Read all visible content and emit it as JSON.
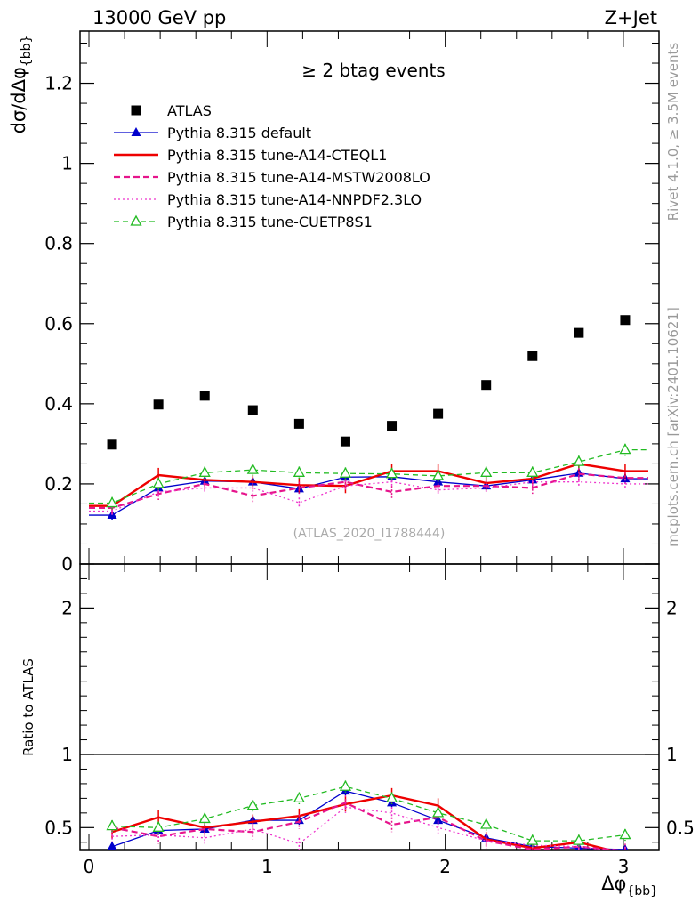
{
  "header": {
    "left": "13000 GeV pp",
    "right": "Z+Jet"
  },
  "side_labels": {
    "rivet": "Rivet 4.1.0, ≥ 3.5M events",
    "mcplots": "mcplots.cern.ch [arXiv:2401.10621]"
  },
  "chart_data": [
    {
      "type": "scatter",
      "panel": "main",
      "title": "≥ 2 btag events",
      "watermark": "(ATLAS_2020_I1788444)",
      "xlabel": "Δφ",
      "xlabel_sub": "{bb}",
      "ylabel": "dσ/dΔφ",
      "ylabel_sub": "{bb}",
      "xlim": [
        -0.05,
        3.2
      ],
      "ylim": [
        0,
        1.33
      ],
      "yticks": [
        0,
        0.2,
        0.4,
        0.6,
        0.8,
        1,
        1.2
      ],
      "ytick_labels": [
        "0",
        "0.2",
        "0.4",
        "0.6",
        "0.8",
        "1",
        "1.2"
      ],
      "x": [
        0.13,
        0.39,
        0.65,
        0.92,
        1.18,
        1.44,
        1.7,
        1.96,
        2.23,
        2.49,
        2.75,
        3.01
      ],
      "series": [
        {
          "name": "ATLAS",
          "color": "#000000",
          "marker": "square",
          "values": [
            0.298,
            0.398,
            0.42,
            0.384,
            0.35,
            0.306,
            0.345,
            0.375,
            0.447,
            0.519,
            0.577,
            0.609
          ]
        },
        {
          "name": "Pythia 8.315 default",
          "color": "#0000cc",
          "marker": "triangle",
          "dash": "",
          "values": [
            0.122,
            0.19,
            0.207,
            0.205,
            0.188,
            0.217,
            0.218,
            0.205,
            0.195,
            0.21,
            0.227,
            0.213
          ],
          "err": 0.012
        },
        {
          "name": "Pythia 8.315 tune-A14-CTEQL1",
          "color": "#ee0000",
          "marker": "none",
          "dash": "",
          "values": [
            0.145,
            0.222,
            0.21,
            0.205,
            0.197,
            0.195,
            0.232,
            0.232,
            0.202,
            0.213,
            0.25,
            0.232
          ],
          "err": 0.018
        },
        {
          "name": "Pythia 8.315 tune-A14-MSTW2008LO",
          "color": "#e6148c",
          "marker": "none",
          "dash": "7,4",
          "values": [
            0.14,
            0.175,
            0.2,
            0.17,
            0.19,
            0.205,
            0.18,
            0.195,
            0.195,
            0.19,
            0.225,
            0.215
          ],
          "err": 0.015
        },
        {
          "name": "Pythia 8.315 tune-A14-NNPDF2.3LO",
          "color": "#ee33cc",
          "marker": "none",
          "dash": "2,3",
          "values": [
            0.132,
            0.18,
            0.19,
            0.19,
            0.153,
            0.195,
            0.205,
            0.185,
            0.19,
            0.205,
            0.205,
            0.2
          ],
          "err": 0.013
        },
        {
          "name": "Pythia 8.315 tune-CUETP8S1",
          "color": "#22bb22",
          "marker": "open-triangle",
          "dash": "6,4",
          "values": [
            0.152,
            0.2,
            0.228,
            0.235,
            0.228,
            0.226,
            0.225,
            0.22,
            0.228,
            0.228,
            0.255,
            0.285
          ],
          "err": 0.015
        }
      ]
    },
    {
      "type": "line",
      "panel": "ratio",
      "ylabel": "Ratio to ATLAS",
      "xlim": [
        -0.05,
        3.2
      ],
      "ylim": [
        0.35,
        2.3
      ],
      "yticks": [
        0.5,
        1,
        2
      ],
      "ytick_labels": [
        "0.5",
        "1",
        "2"
      ],
      "xticks": [
        0,
        1,
        2,
        3
      ],
      "xtick_labels": [
        "0",
        "1",
        "2",
        "3"
      ],
      "x": [
        0.13,
        0.39,
        0.65,
        0.92,
        1.18,
        1.44,
        1.7,
        1.96,
        2.23,
        2.49,
        2.75,
        3.01
      ],
      "reference": 1,
      "series": [
        {
          "name": "Pythia 8.315 default",
          "values": [
            0.37,
            0.48,
            0.49,
            0.55,
            0.55,
            0.75,
            0.67,
            0.55,
            0.43,
            0.37,
            0.36,
            0.35
          ],
          "err": 0.03
        },
        {
          "name": "Pythia 8.315 tune-A14-CTEQL1",
          "values": [
            0.47,
            0.57,
            0.5,
            0.54,
            0.58,
            0.66,
            0.72,
            0.65,
            0.42,
            0.36,
            0.4,
            0.32
          ],
          "err": 0.05
        },
        {
          "name": "Pythia 8.315 tune-A14-MSTW2008LO",
          "values": [
            0.5,
            0.44,
            0.49,
            0.47,
            0.54,
            0.67,
            0.52,
            0.57,
            0.41,
            0.35,
            0.37,
            0.34
          ],
          "err": 0.05
        },
        {
          "name": "Pythia 8.315 tune-A14-NNPDF2.3LO",
          "values": [
            0.44,
            0.45,
            0.43,
            0.49,
            0.39,
            0.64,
            0.6,
            0.5,
            0.41,
            0.38,
            0.37,
            0.33
          ],
          "err": 0.04
        },
        {
          "name": "Pythia 8.315 tune-CUETP8S1",
          "values": [
            0.51,
            0.5,
            0.56,
            0.65,
            0.7,
            0.78,
            0.7,
            0.6,
            0.52,
            0.41,
            0.41,
            0.45
          ],
          "err": 0.04
        }
      ]
    }
  ]
}
